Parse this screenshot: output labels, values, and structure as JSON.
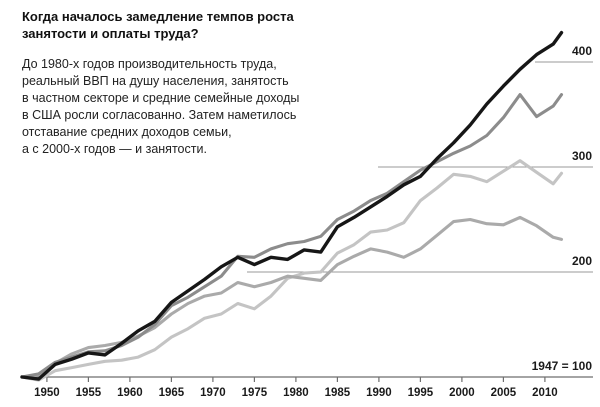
{
  "header": {
    "title": "Когда началось замедление темпов роста\nзанятости и оплаты труда?",
    "description": "До 1980-х годов производительность труда,\nреальный ВВП на душу населения, занятость\nв частном секторе и средние семейные доходы\nв США росли согласованно. Затем наметилось\nотставание средних доходов семьи,\nа с 2000-х годов — и занятости."
  },
  "chart_data": {
    "type": "line",
    "title": "Когда началось замедление темпов роста занятости и оплаты труда?",
    "baseline_note": "1947 = 100",
    "x_tick_labels": [
      1950,
      1955,
      1960,
      1965,
      1970,
      1975,
      1980,
      1985,
      1990,
      1995,
      2000,
      2005,
      2010
    ],
    "y_gridline_labels": [
      "200",
      "300",
      "400"
    ],
    "y_gridline_values": [
      200,
      300,
      400
    ],
    "x_range": [
      1947,
      2012
    ],
    "y_range": [
      100,
      440
    ],
    "grid": "partial-horizontal",
    "legend_position": "none",
    "x": [
      1947,
      1949,
      1951,
      1953,
      1955,
      1957,
      1959,
      1961,
      1963,
      1965,
      1967,
      1969,
      1971,
      1973,
      1975,
      1977,
      1979,
      1981,
      1983,
      1985,
      1987,
      1989,
      1991,
      1993,
      1995,
      1997,
      1999,
      2001,
      2003,
      2005,
      2007,
      2009,
      2011,
      2012
    ],
    "series": [
      {
        "name": "Занятость в частном секторе",
        "color": "#c4c4c4",
        "values": [
          100,
          97,
          106,
          109,
          112,
          115,
          116,
          119,
          126,
          138,
          146,
          156,
          160,
          170,
          165,
          177,
          194,
          199,
          200,
          218,
          226,
          238,
          240,
          247,
          268,
          280,
          293,
          291,
          286,
          296,
          306,
          295,
          284,
          294
        ]
      },
      {
        "name": "Средние семейные доходы",
        "color": "#aaaaaa",
        "values": [
          100,
          102,
          113,
          122,
          128,
          130,
          133,
          139,
          147,
          160,
          170,
          177,
          180,
          190,
          186,
          190,
          196,
          194,
          192,
          207,
          215,
          222,
          219,
          214,
          222,
          235,
          248,
          250,
          246,
          245,
          252,
          244,
          233,
          231
        ]
      },
      {
        "name": "Реальный ВВП на душу населения",
        "color": "#8c8c8c",
        "values": [
          100,
          103,
          114,
          119,
          124,
          125,
          130,
          138,
          150,
          168,
          176,
          186,
          196,
          215,
          214,
          222,
          227,
          229,
          234,
          250,
          258,
          268,
          275,
          286,
          297,
          305,
          313,
          320,
          330,
          347,
          369,
          348,
          358,
          369
        ]
      },
      {
        "name": "Производительность труда",
        "color": "#161616",
        "values": [
          100,
          98,
          112,
          117,
          123,
          121,
          132,
          144,
          153,
          171,
          182,
          193,
          205,
          214,
          207,
          214,
          212,
          221,
          219,
          243,
          252,
          262,
          272,
          283,
          291,
          308,
          323,
          340,
          360,
          377,
          393,
          407,
          417,
          428
        ]
      }
    ]
  },
  "colors": {
    "axis": "#6e6e6e",
    "gridline": "#9a9a9a",
    "tick_text": "#1a1a1a"
  }
}
